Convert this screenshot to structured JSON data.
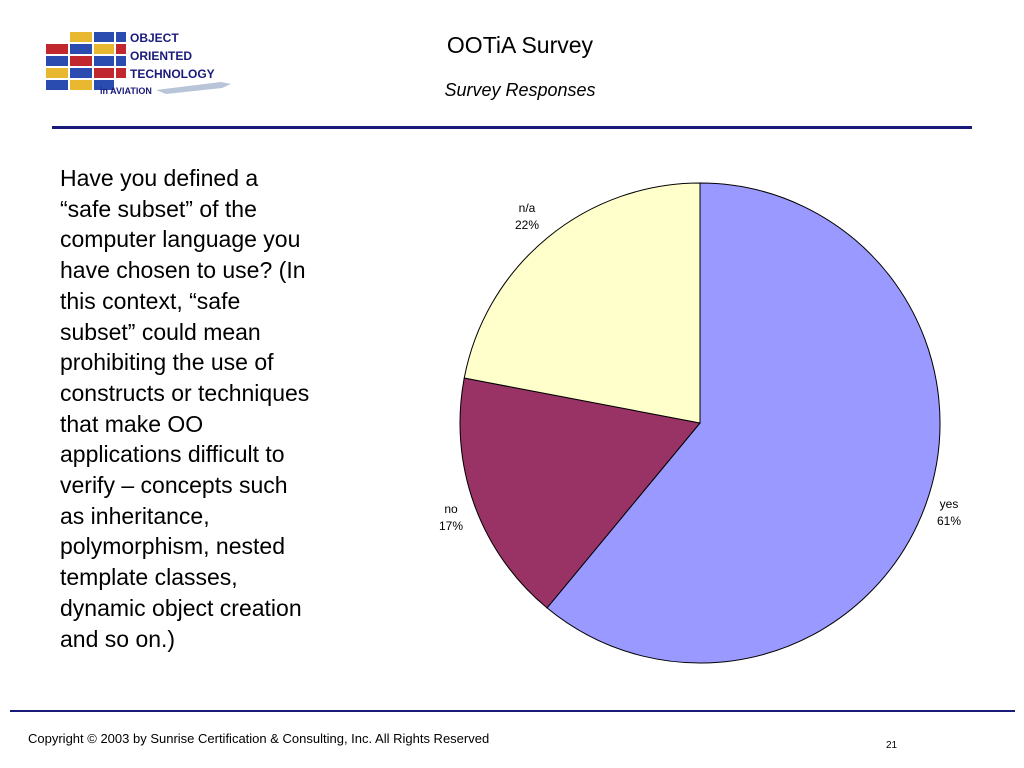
{
  "header": {
    "title": "OOTiA Survey",
    "subtitle": "Survey Responses"
  },
  "logo": {
    "line1": "OBJECT",
    "line2": "ORIENTED",
    "line3": "TECHNOLOGY",
    "line4": "in AVIATION"
  },
  "question": {
    "text": "Have you defined a “safe subset” of the computer language you have chosen to use?  (In this context, “safe subset” could mean prohibiting the use of constructs or techniques that make OO applications difficult to verify – concepts such as inheritance, polymorphism, nested template classes, dynamic object creation and so on.)"
  },
  "chart_data": {
    "type": "pie",
    "title": "",
    "slices": [
      {
        "label": "yes",
        "value": 61,
        "value_label": "61%",
        "color": "#9999ff"
      },
      {
        "label": "no",
        "value": 17,
        "value_label": "17%",
        "color": "#993366"
      },
      {
        "label": "n/a",
        "value": 22,
        "value_label": "22%",
        "color": "#ffffcc"
      }
    ],
    "start": "12 o'clock",
    "direction": "clockwise",
    "legend": "none"
  },
  "footer": {
    "copyright": "Copyright © 2003 by Sunrise Certification & Consulting, Inc.  All Rights Reserved",
    "page_number": "21"
  }
}
